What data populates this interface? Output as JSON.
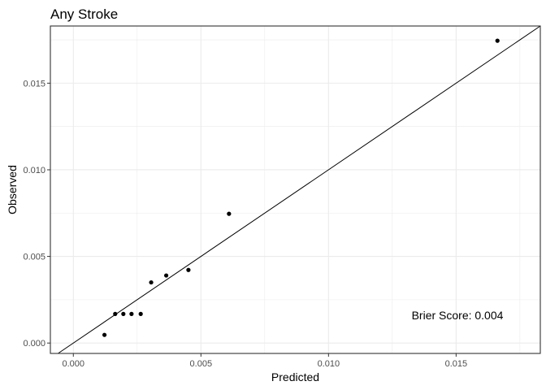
{
  "chart_data": {
    "type": "scatter",
    "title": "Any Stroke",
    "xlabel": "Predicted",
    "ylabel": "Observed",
    "xlim": [
      -0.0009,
      0.0183
    ],
    "ylim": [
      -0.0006,
      0.0183
    ],
    "x_ticks": [
      0.0,
      0.005,
      0.01,
      0.015
    ],
    "y_ticks": [
      0.0,
      0.005,
      0.01,
      0.015
    ],
    "x_tick_labels": [
      "0.000",
      "0.005",
      "0.010",
      "0.015"
    ],
    "y_tick_labels": [
      "0.000",
      "0.005",
      "0.010",
      "0.015"
    ],
    "points": [
      {
        "x": 0.00122,
        "y": 0.00047
      },
      {
        "x": 0.00164,
        "y": 0.00168
      },
      {
        "x": 0.00196,
        "y": 0.00168
      },
      {
        "x": 0.00228,
        "y": 0.00168
      },
      {
        "x": 0.00264,
        "y": 0.00168
      },
      {
        "x": 0.00305,
        "y": 0.0035
      },
      {
        "x": 0.00364,
        "y": 0.0039
      },
      {
        "x": 0.00451,
        "y": 0.00422
      },
      {
        "x": 0.0061,
        "y": 0.00746
      },
      {
        "x": 0.01662,
        "y": 0.01745
      }
    ],
    "reference_line": "y = x",
    "annotation": "Brier Score: 0.004",
    "grid": true,
    "colors": {
      "points": "#000000",
      "grid": "#ebebeb",
      "panel_border": "#333333",
      "line": "#000000"
    }
  }
}
